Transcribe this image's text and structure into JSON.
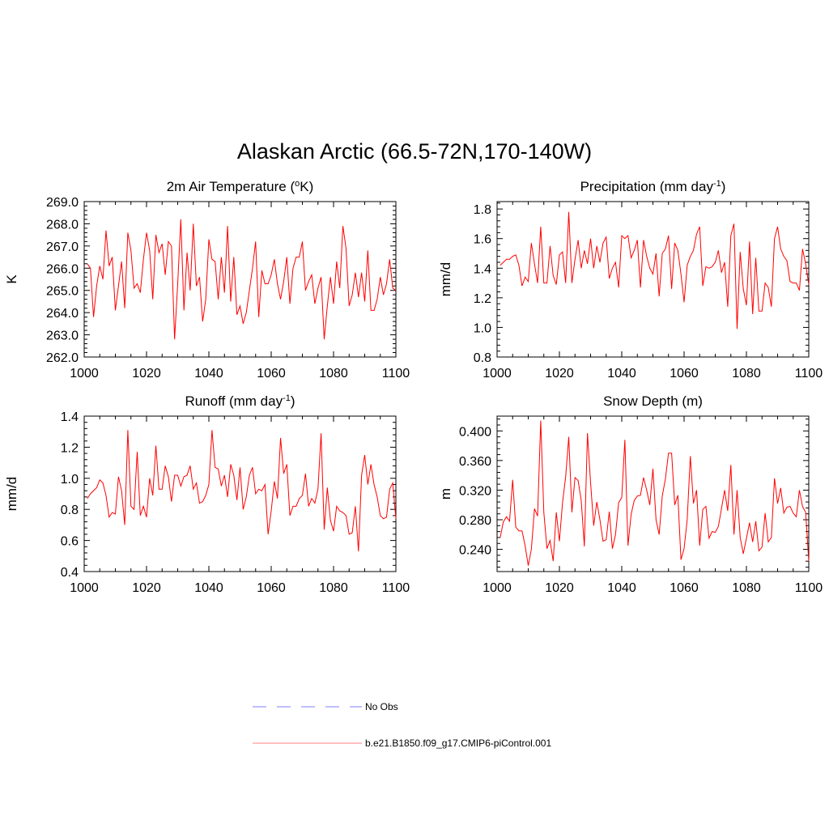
{
  "title": "Alaskan Arctic (66.5-72N,170-140W)",
  "colors": {
    "model": "#ff0000",
    "obs": "#9999ff",
    "axis": "#000000"
  },
  "legend": {
    "obs_label": "No Obs",
    "model_label": "b.e21.B1850.f09_g17.CMIP6-piControl.001"
  },
  "chart_data": [
    {
      "type": "line",
      "title_main": "2m Air Temperature (",
      "title_sup": "o",
      "title_tail": "K)",
      "ylabel": "K",
      "xlim": [
        1000,
        1100
      ],
      "ylim": [
        262.0,
        269.0
      ],
      "xticks": [
        1000,
        1020,
        1040,
        1060,
        1080,
        1100
      ],
      "xtick_labels": [
        "1000",
        "1020",
        "1040",
        "1060",
        "1080",
        "1100"
      ],
      "yticks": [
        262,
        263,
        264,
        265,
        266,
        267,
        268,
        269
      ],
      "ytick_labels": [
        "262.0",
        "263.0",
        "264.0",
        "265.0",
        "266.0",
        "267.0",
        "268.0",
        "269.0"
      ],
      "x_start": 1001,
      "series": [
        {
          "name": "b.e21.B1850.f09_g17.CMIP6-piControl.001",
          "values": [
            266.2,
            266.0,
            263.8,
            265.2,
            266.1,
            265.5,
            267.7,
            266.1,
            266.5,
            264.1,
            265.2,
            266.3,
            264.2,
            267.6,
            266.8,
            265.1,
            265.3,
            264.9,
            266.4,
            267.6,
            266.8,
            264.6,
            267.5,
            266.7,
            267.1,
            265.7,
            267.2,
            267.0,
            262.8,
            265.3,
            268.2,
            264.1,
            266.7,
            265.0,
            268.0,
            265.2,
            265.6,
            263.6,
            264.6,
            267.3,
            266.4,
            266.3,
            264.6,
            266.5,
            264.9,
            267.9,
            264.5,
            266.5,
            263.9,
            264.3,
            263.5,
            264.0,
            265.0,
            266.0,
            267.2,
            263.8,
            265.9,
            265.3,
            265.3,
            265.7,
            266.4,
            265.3,
            264.6,
            265.4,
            266.5,
            264.4,
            266.0,
            266.5,
            266.5,
            267.2,
            265.0,
            265.4,
            265.7,
            264.4,
            265.1,
            265.6,
            262.8,
            264.3,
            265.6,
            264.4,
            266.3,
            265.1,
            267.9,
            266.9,
            264.3,
            264.8,
            265.8,
            264.7,
            265.8,
            264.5,
            266.8,
            264.1,
            264.1,
            264.6,
            265.6,
            264.8,
            265.3,
            266.4,
            265.1,
            265.0
          ]
        }
      ]
    },
    {
      "type": "line",
      "title_main": "Precipitation (mm day",
      "title_sup": "-1",
      "title_tail": ")",
      "ylabel": "mm/d",
      "xlim": [
        1000,
        1100
      ],
      "ylim": [
        0.8,
        1.85
      ],
      "xticks": [
        1000,
        1020,
        1040,
        1060,
        1080,
        1100
      ],
      "xtick_labels": [
        "1000",
        "1020",
        "1040",
        "1060",
        "1080",
        "1100"
      ],
      "yticks": [
        0.8,
        1.0,
        1.2,
        1.4,
        1.6,
        1.8
      ],
      "ytick_labels": [
        "0.8",
        "1.0",
        "1.2",
        "1.4",
        "1.6",
        "1.8"
      ],
      "x_start": 1001,
      "series": [
        {
          "name": "b.e21.B1850.f09_g17.CMIP6-piControl.001",
          "values": [
            1.42,
            1.44,
            1.46,
            1.46,
            1.48,
            1.49,
            1.42,
            1.28,
            1.34,
            1.31,
            1.57,
            1.43,
            1.3,
            1.68,
            1.3,
            1.3,
            1.55,
            1.35,
            1.29,
            1.49,
            1.51,
            1.3,
            1.78,
            1.3,
            1.46,
            1.59,
            1.4,
            1.52,
            1.43,
            1.6,
            1.4,
            1.55,
            1.44,
            1.57,
            1.61,
            1.33,
            1.4,
            1.44,
            1.27,
            1.62,
            1.6,
            1.62,
            1.47,
            1.52,
            1.59,
            1.27,
            1.59,
            1.48,
            1.4,
            1.36,
            1.5,
            1.21,
            1.5,
            1.53,
            1.62,
            1.26,
            1.57,
            1.52,
            1.36,
            1.17,
            1.42,
            1.48,
            1.52,
            1.63,
            1.68,
            1.28,
            1.41,
            1.4,
            1.41,
            1.44,
            1.52,
            1.37,
            1.44,
            1.14,
            1.62,
            1.7,
            0.99,
            1.51,
            1.26,
            1.15,
            1.58,
            1.09,
            1.47,
            1.11,
            1.11,
            1.3,
            1.27,
            1.14,
            1.6,
            1.68,
            1.53,
            1.48,
            1.45,
            1.31,
            1.3,
            1.3,
            1.25,
            1.53,
            1.43,
            1.29
          ]
        }
      ]
    },
    {
      "type": "line",
      "title_main": "Runoff (mm day",
      "title_sup": "-1",
      "title_tail": ")",
      "ylabel": "mm/d",
      "xlim": [
        1000,
        1100
      ],
      "ylim": [
        0.4,
        1.4
      ],
      "xticks": [
        1000,
        1020,
        1040,
        1060,
        1080,
        1100
      ],
      "xtick_labels": [
        "1000",
        "1020",
        "1040",
        "1060",
        "1080",
        "1100"
      ],
      "yticks": [
        0.4,
        0.6,
        0.8,
        1.0,
        1.2,
        1.4
      ],
      "ytick_labels": [
        "0.4",
        "0.6",
        "0.8",
        "1.0",
        "1.2",
        "1.4"
      ],
      "x_start": 1001,
      "series": [
        {
          "name": "b.e21.B1850.f09_g17.CMIP6-piControl.001",
          "values": [
            0.87,
            0.9,
            0.92,
            0.94,
            0.99,
            0.97,
            0.89,
            0.75,
            0.78,
            0.77,
            1.01,
            0.92,
            0.7,
            1.31,
            0.82,
            0.8,
            1.17,
            0.76,
            0.82,
            0.75,
            1.0,
            0.89,
            1.21,
            0.93,
            0.93,
            1.08,
            1.01,
            0.85,
            1.02,
            1.02,
            0.95,
            1.01,
            1.02,
            1.08,
            0.93,
            0.97,
            0.84,
            0.85,
            0.89,
            0.96,
            1.31,
            1.07,
            1.06,
            0.95,
            1.02,
            0.88,
            1.09,
            1.02,
            0.86,
            1.07,
            0.8,
            0.88,
            1.02,
            1.07,
            0.9,
            0.93,
            0.92,
            0.96,
            0.64,
            0.79,
            0.98,
            0.87,
            1.26,
            1.03,
            1.09,
            0.76,
            0.82,
            0.82,
            0.87,
            0.89,
            1.03,
            0.82,
            0.87,
            0.84,
            0.93,
            1.29,
            0.67,
            0.94,
            0.73,
            0.66,
            0.82,
            0.79,
            0.78,
            0.76,
            0.64,
            0.65,
            0.82,
            0.53,
            1.02,
            1.15,
            0.96,
            1.09,
            0.96,
            0.88,
            0.76,
            0.74,
            0.75,
            0.93,
            0.97,
            0.74
          ]
        }
      ]
    },
    {
      "type": "line",
      "title_main": "Snow Depth (m)",
      "title_sup": "",
      "title_tail": "",
      "ylabel": "m",
      "xlim": [
        1000,
        1100
      ],
      "ylim": [
        0.21,
        0.42
      ],
      "xticks": [
        1000,
        1020,
        1040,
        1060,
        1080,
        1100
      ],
      "xtick_labels": [
        "1000",
        "1020",
        "1040",
        "1060",
        "1080",
        "1100"
      ],
      "yticks": [
        0.24,
        0.28,
        0.32,
        0.36,
        0.4
      ],
      "ytick_labels": [
        "0.240",
        "0.280",
        "0.320",
        "0.360",
        "0.400"
      ],
      "x_start": 1001,
      "series": [
        {
          "name": "b.e21.B1850.f09_g17.CMIP6-piControl.001",
          "values": [
            0.256,
            0.277,
            0.284,
            0.278,
            0.334,
            0.27,
            0.265,
            0.265,
            0.245,
            0.218,
            0.24,
            0.295,
            0.285,
            0.414,
            0.29,
            0.241,
            0.252,
            0.224,
            0.29,
            0.251,
            0.303,
            0.338,
            0.392,
            0.29,
            0.337,
            0.333,
            0.306,
            0.244,
            0.397,
            0.33,
            0.272,
            0.304,
            0.28,
            0.251,
            0.253,
            0.291,
            0.241,
            0.26,
            0.303,
            0.31,
            0.388,
            0.245,
            0.287,
            0.306,
            0.312,
            0.313,
            0.337,
            0.32,
            0.3,
            0.349,
            0.28,
            0.26,
            0.312,
            0.335,
            0.37,
            0.37,
            0.3,
            0.313,
            0.226,
            0.241,
            0.28,
            0.366,
            0.302,
            0.32,
            0.245,
            0.294,
            0.298,
            0.255,
            0.264,
            0.263,
            0.271,
            0.295,
            0.32,
            0.292,
            0.354,
            0.26,
            0.32,
            0.256,
            0.234,
            0.255,
            0.276,
            0.25,
            0.278,
            0.238,
            0.243,
            0.289,
            0.25,
            0.256,
            0.336,
            0.302,
            0.323,
            0.289,
            0.297,
            0.298,
            0.289,
            0.284,
            0.32,
            0.298,
            0.29,
            0.224
          ]
        }
      ]
    }
  ]
}
